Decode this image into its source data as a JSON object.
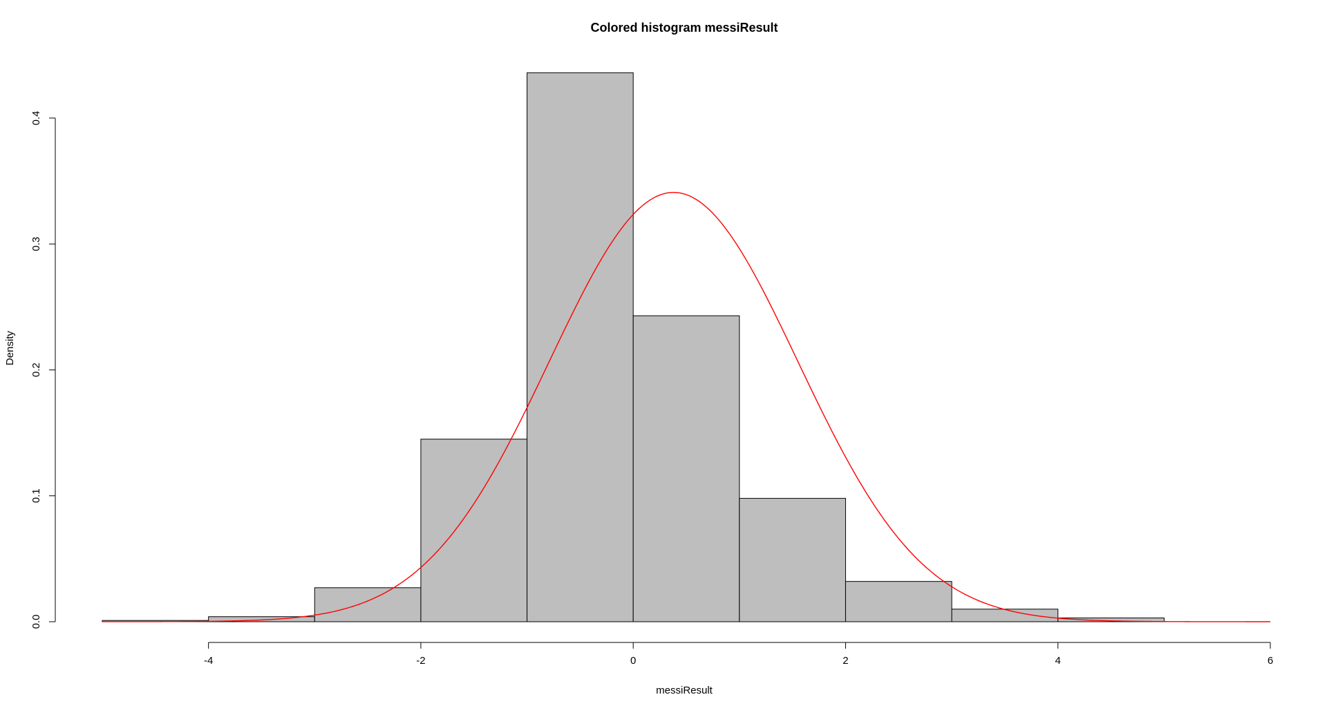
{
  "chart_data": {
    "type": "bar",
    "title": "Colored histogram messiResult",
    "xlabel": "messiResult",
    "ylabel": "Density",
    "xlim": [
      -5,
      6
    ],
    "ylim": [
      0,
      0.44
    ],
    "x_ticks": [
      -4,
      -2,
      0,
      2,
      4,
      6
    ],
    "x_tick_labels": [
      "-4",
      "-2",
      "0",
      "2",
      "4",
      "6"
    ],
    "y_ticks": [
      0.0,
      0.1,
      0.2,
      0.3,
      0.4
    ],
    "y_tick_labels": [
      "0.0",
      "0.1",
      "0.2",
      "0.3",
      "0.4"
    ],
    "grid": false,
    "bins": [
      {
        "from": -5,
        "to": -4,
        "density": 0.001
      },
      {
        "from": -4,
        "to": -3,
        "density": 0.004
      },
      {
        "from": -3,
        "to": -2,
        "density": 0.027
      },
      {
        "from": -2,
        "to": -1,
        "density": 0.145
      },
      {
        "from": -1,
        "to": 0,
        "density": 0.436
      },
      {
        "from": 0,
        "to": 1,
        "density": 0.243
      },
      {
        "from": 1,
        "to": 2,
        "density": 0.098
      },
      {
        "from": 2,
        "to": 3,
        "density": 0.032
      },
      {
        "from": 3,
        "to": 4,
        "density": 0.01
      },
      {
        "from": 4,
        "to": 5,
        "density": 0.003
      }
    ],
    "density_curve": {
      "kind": "normal",
      "mean": 0.38,
      "sd": 1.17,
      "x_range": [
        -5,
        6
      ]
    },
    "colors": {
      "bar_fill": "#bebebe",
      "bar_stroke": "#000000",
      "curve": "#ff0000",
      "axis": "#000000"
    }
  }
}
